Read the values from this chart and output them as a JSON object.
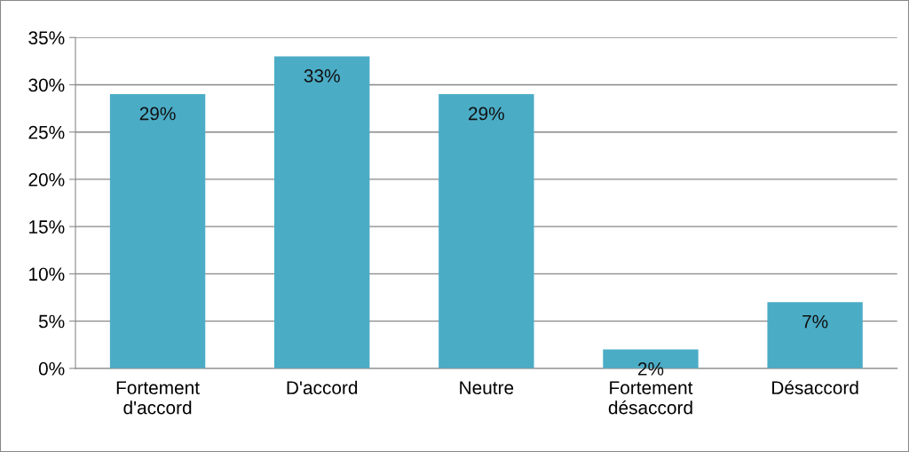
{
  "chart_data": {
    "type": "bar",
    "categories": [
      "Fortement\nd'accord",
      "D'accord",
      "Neutre",
      "Fortement\ndésaccord",
      "Désaccord"
    ],
    "values": [
      29,
      33,
      29,
      2,
      7
    ],
    "value_labels": [
      "29%",
      "33%",
      "29%",
      "2%",
      "7%"
    ],
    "color": "#4bacc6",
    "ylim": [
      0,
      35
    ],
    "yticks": [
      {
        "value": 0,
        "label": "0%"
      },
      {
        "value": 5,
        "label": "5%"
      },
      {
        "value": 10,
        "label": "10%"
      },
      {
        "value": 15,
        "label": "15%"
      },
      {
        "value": 20,
        "label": "20%"
      },
      {
        "value": 25,
        "label": "25%"
      },
      {
        "value": 30,
        "label": "30%"
      },
      {
        "value": 35,
        "label": "35%"
      }
    ],
    "grid": "y"
  }
}
